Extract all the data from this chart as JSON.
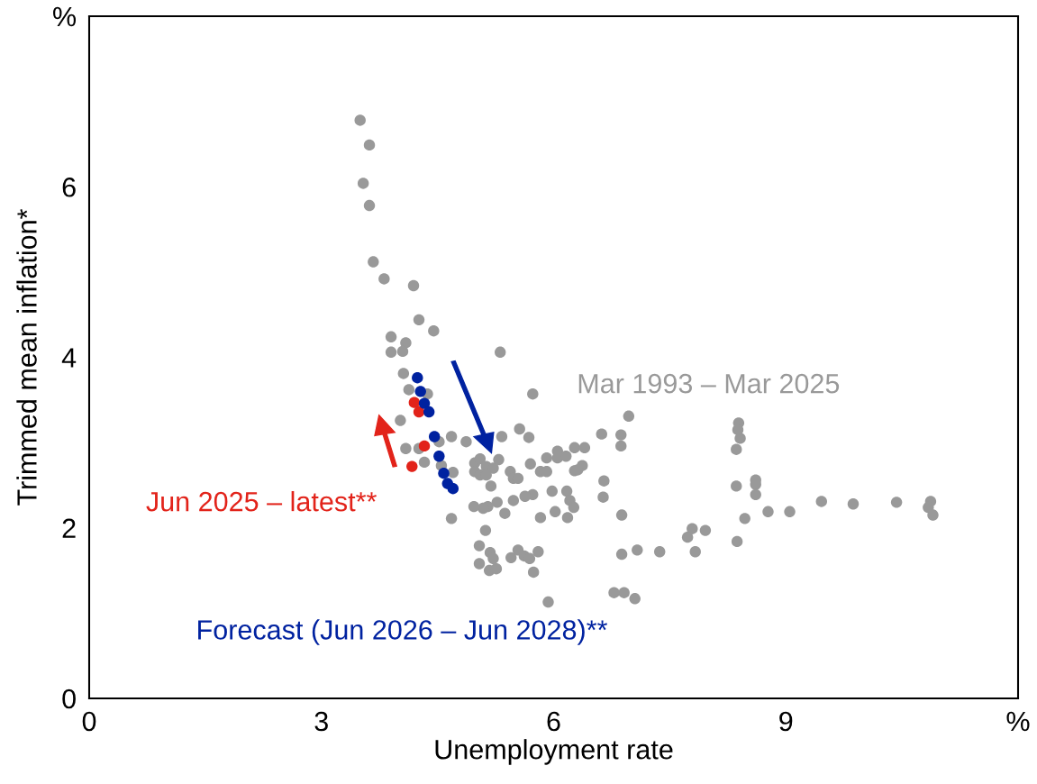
{
  "chart_data": {
    "type": "scatter",
    "xlabel": "Unemployment rate",
    "ylabel": "Trimmed mean inflation*",
    "xlim": [
      0,
      12
    ],
    "xticks": [
      0,
      3,
      6,
      9,
      {
        "value": 12,
        "label": "%"
      }
    ],
    "ylim": [
      0,
      8
    ],
    "yticks": [
      0,
      2,
      4,
      6,
      {
        "value": 8,
        "label": "%"
      }
    ],
    "grid": false,
    "legend": "left",
    "marker": "circle",
    "series": [
      {
        "name": "Mar 1993 – Mar 2025",
        "color": "#999999",
        "x": [
          3.5,
          3.62,
          3.54,
          3.62,
          3.67,
          3.81,
          4.19,
          4.26,
          4.45,
          3.9,
          4.09,
          3.9,
          4.05,
          5.31,
          4.06,
          4.13,
          4.37,
          4.02,
          4.09,
          4.26,
          4.33,
          4.52,
          4.68,
          4.87,
          5.73,
          5.56,
          5.68,
          5.33,
          4.55,
          4.7,
          4.68,
          4.98,
          5.05,
          5.13,
          5.22,
          4.98,
          5.05,
          5.13,
          5.29,
          5.19,
          5.44,
          5.48,
          5.54,
          5.7,
          5.83,
          5.91,
          5.91,
          6.05,
          6.05,
          6.16,
          6.27,
          6.27,
          5.98,
          6.17,
          6.21,
          6.26,
          6.18,
          6.02,
          5.83,
          5.73,
          5.63,
          5.48,
          5.37,
          5.27,
          5.15,
          5.09,
          4.97,
          5.12,
          5.04,
          5.18,
          5.22,
          5.04,
          5.17,
          5.26,
          5.45,
          5.54,
          5.62,
          5.69,
          5.8,
          5.74,
          5.93,
          6.97,
          6.62,
          6.87,
          6.87,
          6.4,
          6.37,
          6.31,
          6.65,
          6.64,
          6.88,
          7.08,
          6.88,
          7.37,
          7.79,
          7.73,
          7.96,
          7.83,
          8.37,
          8.39,
          8.38,
          8.41,
          8.36,
          8.36,
          8.61,
          8.61,
          8.61,
          8.47,
          8.77,
          9.05,
          6.78,
          6.91,
          7.05,
          9.46,
          9.87,
          10.43,
          10.87,
          10.84,
          10.9
        ],
        "values": [
          6.78,
          6.49,
          6.04,
          5.78,
          5.12,
          4.92,
          4.84,
          4.44,
          4.31,
          4.24,
          4.17,
          4.06,
          4.07,
          4.06,
          3.81,
          3.62,
          3.57,
          3.26,
          2.93,
          2.93,
          2.77,
          3.01,
          3.07,
          3.01,
          3.57,
          3.16,
          3.06,
          3.07,
          2.73,
          2.65,
          2.11,
          2.76,
          2.81,
          2.72,
          2.7,
          2.66,
          2.62,
          2.62,
          2.8,
          2.49,
          2.66,
          2.58,
          2.58,
          2.75,
          2.66,
          2.66,
          2.82,
          2.9,
          2.82,
          2.84,
          2.94,
          2.67,
          2.43,
          2.43,
          2.32,
          2.24,
          2.12,
          2.19,
          2.12,
          2.39,
          2.37,
          2.32,
          2.17,
          2.3,
          2.25,
          2.23,
          2.25,
          1.97,
          1.79,
          1.71,
          1.64,
          1.58,
          1.5,
          1.52,
          1.65,
          1.74,
          1.67,
          1.64,
          1.72,
          1.48,
          1.13,
          3.31,
          3.1,
          3.09,
          2.96,
          2.94,
          2.73,
          2.68,
          2.55,
          2.36,
          2.15,
          1.74,
          1.69,
          1.72,
          1.99,
          1.89,
          1.97,
          1.72,
          1.84,
          3.23,
          3.15,
          3.05,
          2.92,
          2.49,
          2.56,
          2.51,
          2.39,
          2.11,
          2.19,
          2.19,
          1.24,
          1.24,
          1.17,
          2.31,
          2.28,
          2.3,
          2.31,
          2.24,
          2.15
        ]
      },
      {
        "name": "Jun 2025 – latest**",
        "color": "#e2231a",
        "x": [
          4.2,
          4.26,
          4.33,
          4.17
        ],
        "values": [
          3.47,
          3.36,
          2.96,
          2.72
        ]
      },
      {
        "name": "Forecast (Jun 2026 – Jun 2028)**",
        "color": "#0022a0",
        "x": [
          4.24,
          4.28,
          4.33,
          4.39,
          4.46,
          4.52,
          4.58,
          4.63,
          4.7
        ],
        "values": [
          3.76,
          3.6,
          3.46,
          3.36,
          3.07,
          2.84,
          2.64,
          2.52,
          2.46
        ]
      }
    ]
  }
}
